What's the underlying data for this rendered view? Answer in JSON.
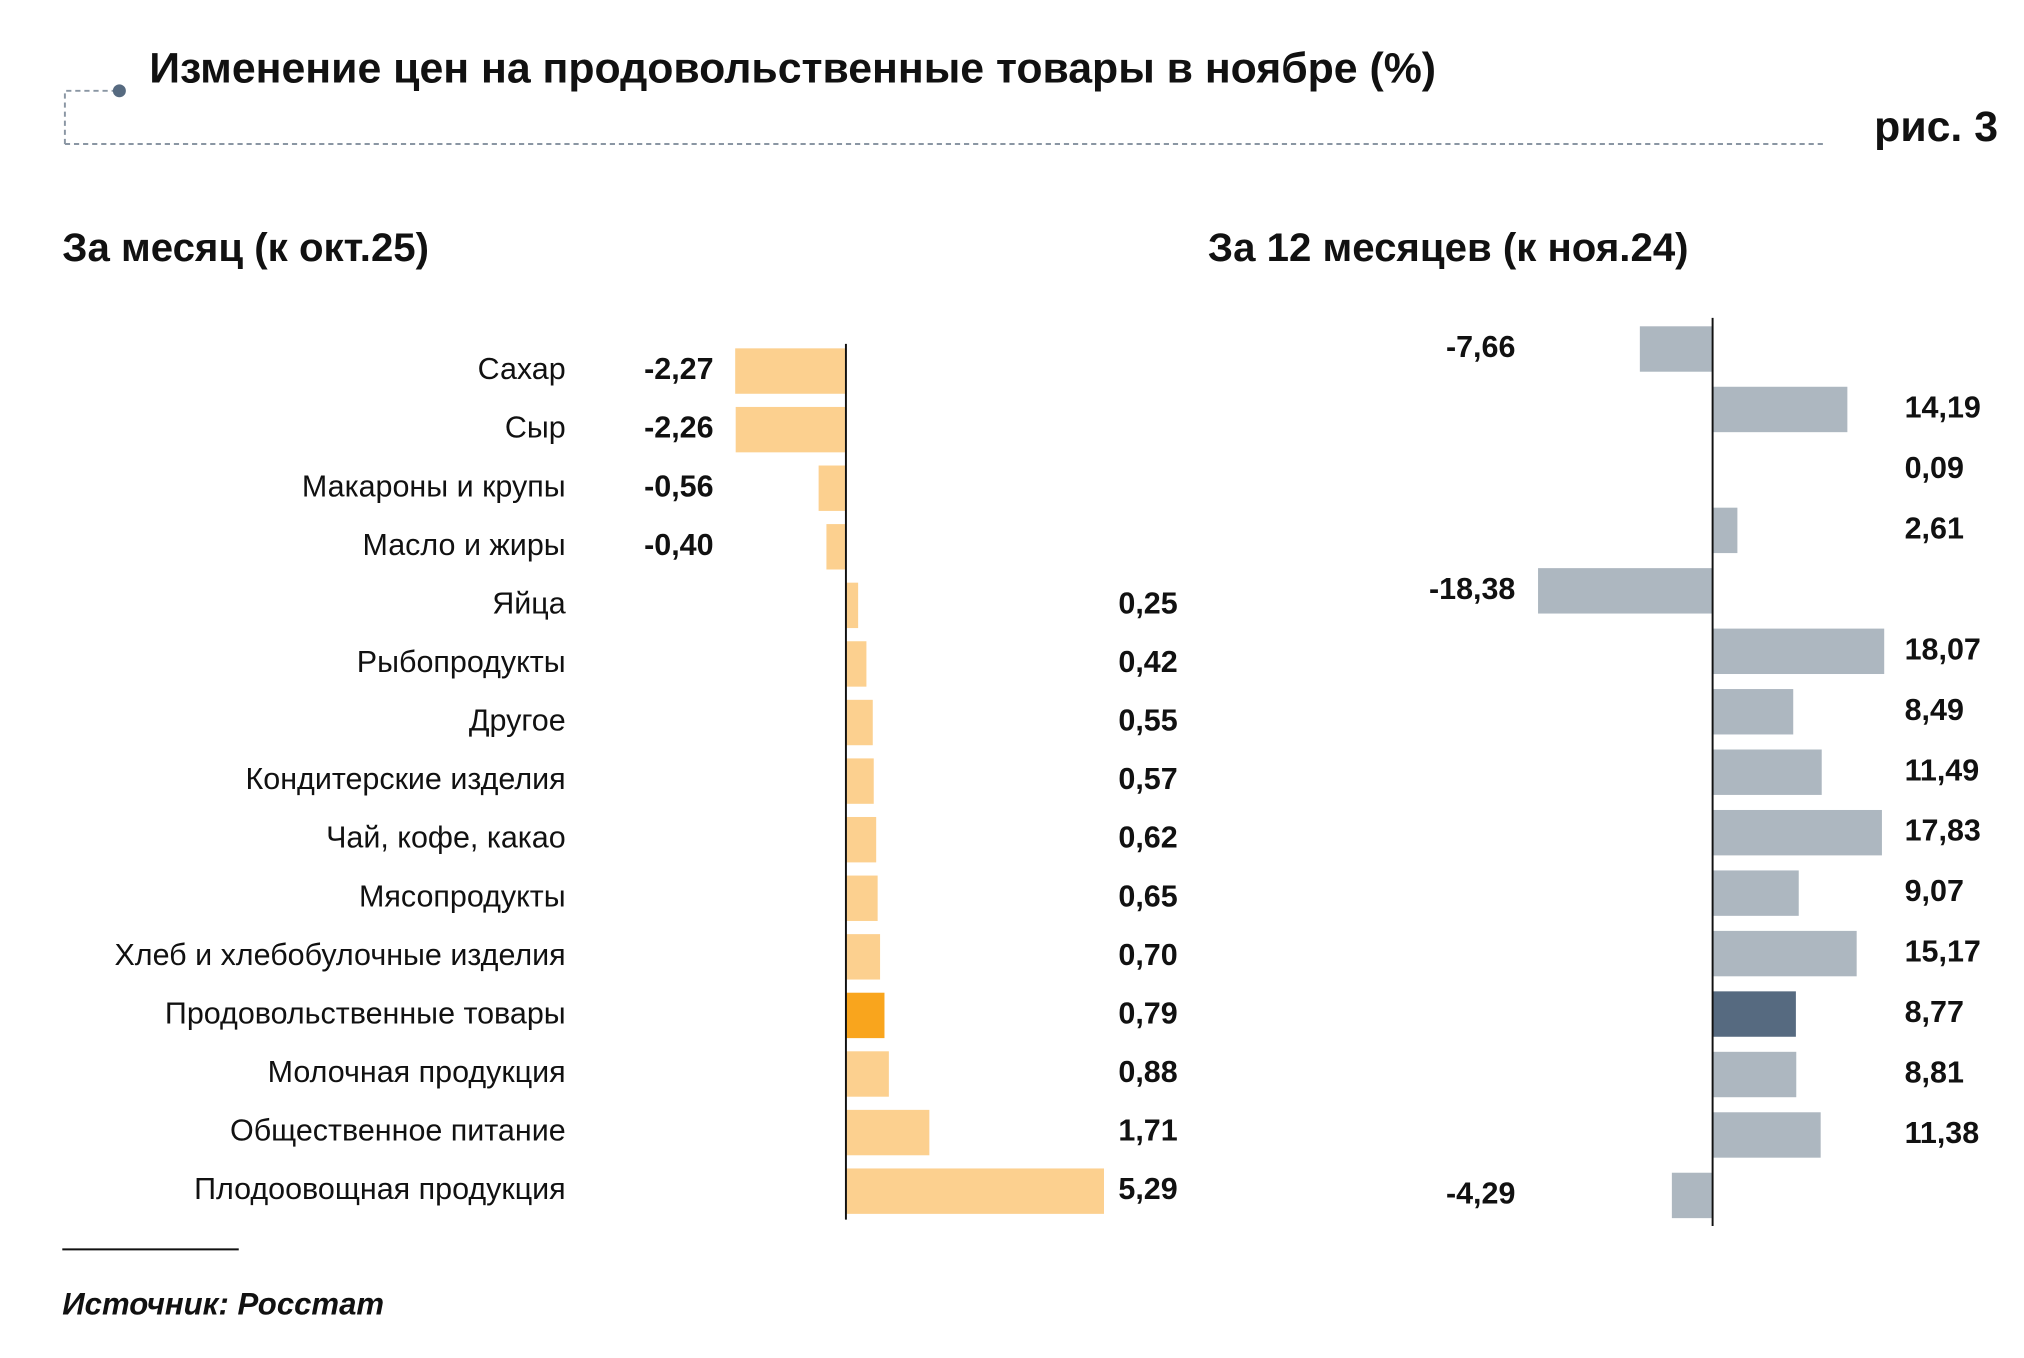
{
  "header": {
    "title": "Изменение цен на продовольственные товары в ноябре (%)",
    "figure": "рис. 3"
  },
  "chart_data": [
    {
      "type": "bar",
      "orientation": "horizontal",
      "title": "За месяц (к окт.25)",
      "categories": [
        "Сахар",
        "Сыр",
        "Макароны и крупы",
        "Масло и жиры",
        "Яйца",
        "Рыбопродукты",
        "Другое",
        "Кондитерские изделия",
        "Чай, кофе, какао",
        "Мясопродукты",
        "Хлеб и хлебобулочные изделия",
        "Продовольственные товары",
        "Молочная продукция",
        "Общественное питание",
        "Плодоовощная продукция"
      ],
      "values": [
        -2.27,
        -2.26,
        -0.56,
        -0.4,
        0.25,
        0.42,
        0.55,
        0.57,
        0.62,
        0.65,
        0.7,
        0.79,
        0.88,
        1.71,
        5.29
      ],
      "value_labels": [
        "-2,27",
        "-2,26",
        "-0,56",
        "-0,40",
        "0,25",
        "0,42",
        "0,55",
        "0,57",
        "0,62",
        "0,65",
        "0,70",
        "0,79",
        "0,88",
        "1,71",
        "5,29"
      ],
      "colors": [
        "#fcd08f",
        "#fcd08f",
        "#fcd08f",
        "#fcd08f",
        "#fcd08f",
        "#fcd08f",
        "#fcd08f",
        "#fcd08f",
        "#fcd08f",
        "#fcd08f",
        "#fcd08f",
        "#f9a51d",
        "#fcd08f",
        "#fcd08f",
        "#fcd08f"
      ]
    },
    {
      "type": "bar",
      "orientation": "horizontal",
      "title": "За 12 месяцев (к ноя.24)",
      "values": [
        -7.66,
        14.19,
        0.09,
        2.61,
        -18.38,
        18.07,
        8.49,
        11.49,
        17.83,
        9.07,
        15.17,
        8.77,
        8.81,
        11.38,
        -4.29
      ],
      "value_labels": [
        "-7,66",
        "14,19",
        "0,09",
        "2,61",
        "-18,38",
        "18,07",
        "8,49",
        "11,49",
        "17,83",
        "9,07",
        "15,17",
        "8,77",
        "8,81",
        "11,38",
        "-4,29"
      ],
      "colors": [
        "#adb7c0",
        "#adb7c0",
        "#adb7c0",
        "#adb7c0",
        "#adb7c0",
        "#adb7c0",
        "#adb7c0",
        "#adb7c0",
        "#adb7c0",
        "#adb7c0",
        "#adb7c0",
        "#566a80",
        "#adb7c0",
        "#adb7c0",
        "#adb7c0"
      ]
    }
  ],
  "source": "Источник: Росстат"
}
